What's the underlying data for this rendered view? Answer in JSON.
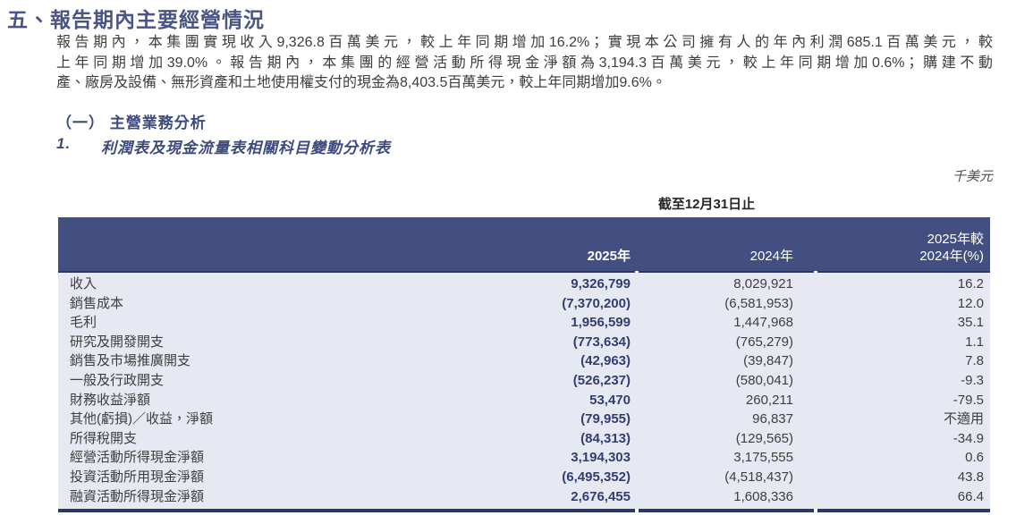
{
  "colors": {
    "heading_navy": "#3d4a7d",
    "title_navy": "#4a5585",
    "table_header_bg": "#424f80",
    "table_body_bg": "#e7e9f2",
    "value_2025_navy": "#323e70",
    "rule_navy": "#2c3765",
    "body_text": "#3e3e3e"
  },
  "header": {
    "title": "五、報告期內主要經營情況",
    "paragraph_lines": [
      "報告期內，本集團實現收入9,326.8百萬美元，較上年同期增加16.2%；實現本公司擁有人的年內利潤685.1百萬美元，較",
      "上年同期增加39.0%。報告期內，本集團的經營活動所得現金淨額為3,194.3百萬美元，較上年同期增加0.6%；購建不動",
      "產、廠房及設備、無形資產和土地使用權支付的現金為8,403.5百萬美元，較上年同期增加9.6%。"
    ],
    "section_heading": "（一） 主營業務分析",
    "sub_item_number": "1.",
    "sub_item_title": "利潤表及現金流量表相關科目變動分析表"
  },
  "table": {
    "unit_note": "千美元",
    "period_note": "截至12月31日止",
    "col_2025": "2025年",
    "col_2024": "2024年",
    "col_change_line1": "2025年較",
    "col_change_line2": "2024年(%)",
    "rows": [
      {
        "label": "收入",
        "v2025": "9,326,799",
        "v2024": "8,029,921",
        "pct": "16.2"
      },
      {
        "label": "銷售成本",
        "v2025": "(7,370,200)",
        "v2024": "(6,581,953)",
        "pct": "12.0"
      },
      {
        "label": "毛利",
        "v2025": "1,956,599",
        "v2024": "1,447,968",
        "pct": "35.1"
      },
      {
        "label": "研究及開發開支",
        "v2025": "(773,634)",
        "v2024": "(765,279)",
        "pct": "1.1"
      },
      {
        "label": "銷售及市場推廣開支",
        "v2025": "(42,963)",
        "v2024": "(39,847)",
        "pct": "7.8"
      },
      {
        "label": "一般及行政開支",
        "v2025": "(526,237)",
        "v2024": "(580,041)",
        "pct": "-9.3"
      },
      {
        "label": "財務收益淨額",
        "v2025": "53,470",
        "v2024": "260,211",
        "pct": "-79.5"
      },
      {
        "label": "其他(虧損)／收益，淨額",
        "v2025": "(79,955)",
        "v2024": "96,837",
        "pct": "不適用"
      },
      {
        "label": "所得稅開支",
        "v2025": "(84,313)",
        "v2024": "(129,565)",
        "pct": "-34.9"
      },
      {
        "label": "經營活動所得現金淨額",
        "v2025": "3,194,303",
        "v2024": "3,175,555",
        "pct": "0.6"
      },
      {
        "label": "投資活動所用現金淨額",
        "v2025": "(6,495,352)",
        "v2024": "(4,518,437)",
        "pct": "43.8"
      },
      {
        "label": "融資活動所得現金淨額",
        "v2025": "2,676,455",
        "v2024": "1,608,336",
        "pct": "66.4"
      }
    ]
  }
}
